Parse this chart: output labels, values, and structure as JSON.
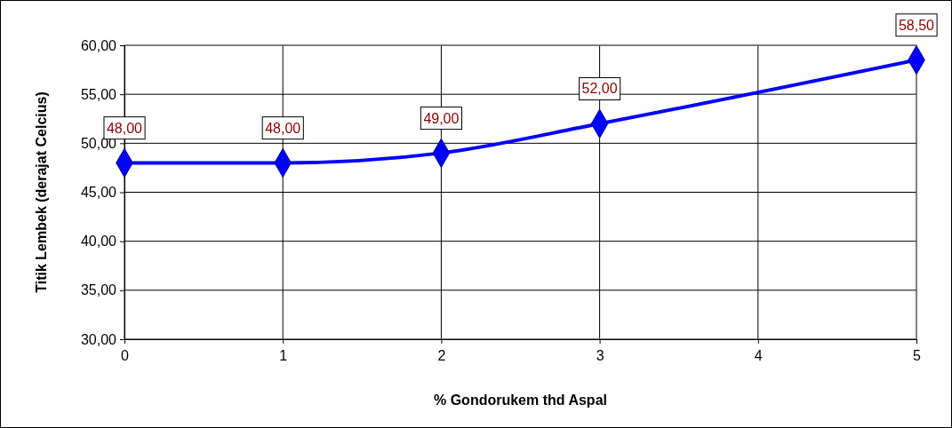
{
  "chart_data": {
    "type": "line",
    "xlabel": "% Gondorukem thd Aspal",
    "ylabel": "Titik Lembek (derajat Celcius)",
    "x": [
      0,
      1,
      2,
      3,
      5
    ],
    "series": [
      {
        "color": "#0000ff",
        "values": [
          48,
          48,
          49,
          52,
          58.5
        ],
        "value_labels": [
          "48,00",
          "48,00",
          "49,00",
          "52,00",
          "58,50"
        ]
      }
    ],
    "xlim": [
      0,
      5
    ],
    "xticks": [
      0,
      1,
      2,
      3,
      4,
      5
    ],
    "ylim": [
      30,
      60
    ],
    "yticks": [
      {
        "value": 30,
        "label": "30,00"
      },
      {
        "value": 35,
        "label": "35,00"
      },
      {
        "value": 40,
        "label": "40,00"
      },
      {
        "value": 45,
        "label": "45,00"
      },
      {
        "value": 50,
        "label": "50,00"
      },
      {
        "value": 55,
        "label": "55,00"
      },
      {
        "value": 60,
        "label": "60,00"
      }
    ],
    "grid": true,
    "marker": "diamond",
    "line_style": "solid"
  }
}
